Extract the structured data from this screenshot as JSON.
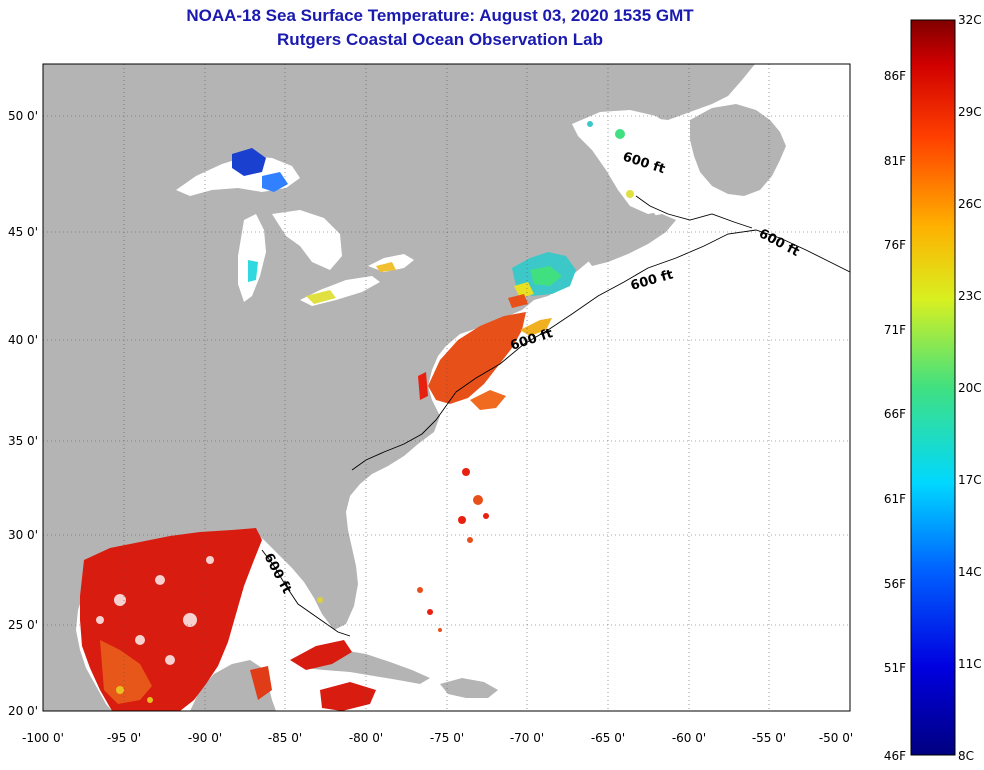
{
  "title": {
    "line1": "NOAA-18 Sea Surface Temperature:  August 03, 2020 1535 GMT",
    "line2": "Rutgers Coastal Ocean Observation Lab"
  },
  "axes": {
    "longitude_labels": [
      "-100 0'",
      "-95 0'",
      "-90 0'",
      "-85 0'",
      "-80 0'",
      "-75 0'",
      "-70 0'",
      "-65 0'",
      "-60 0'",
      "-55 0'",
      "-50 0'"
    ],
    "latitude_labels": [
      "50 0'",
      "45 0'",
      "40 0'",
      "35 0'",
      "30 0'",
      "25 0'",
      "20 0'"
    ]
  },
  "colorbar": {
    "celsius_labels": [
      "32C",
      "29C",
      "26C",
      "23C",
      "20C",
      "17C",
      "14C",
      "11C",
      "8C"
    ],
    "fahrenheit_labels": [
      "86F",
      "81F",
      "76F",
      "71F",
      "66F",
      "61F",
      "56F",
      "51F",
      "46F"
    ]
  },
  "contour_labels": [
    "600 ft",
    "600 ft",
    "600 ft",
    "600 ft",
    "600 ft"
  ],
  "colors": {
    "title": "#1a1ab0",
    "land": "#b4b4b4",
    "ocean_no_data": "#ffffff",
    "warm_gulf": "#d81c10",
    "gulf_stream": "#e8501a",
    "cool_gulf_maine": "#3cc8c8",
    "lake_cold": "#1a40d0"
  }
}
